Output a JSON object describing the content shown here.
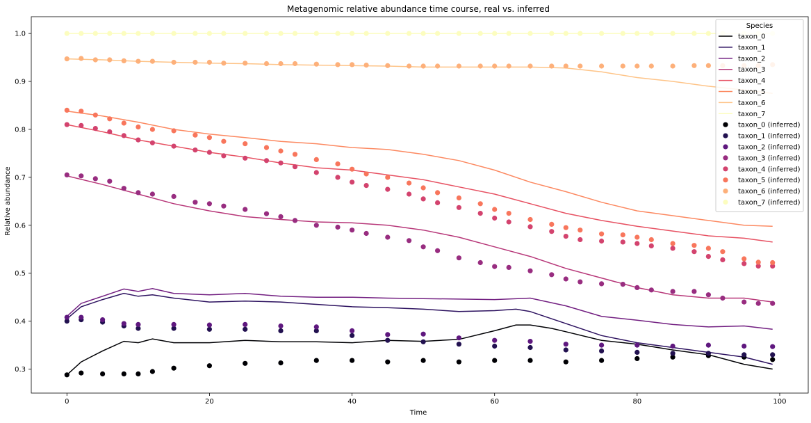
{
  "chart_data": {
    "type": "line",
    "title": "Metagenomic relative abundance time course, real vs. inferred",
    "xlabel": "Time",
    "ylabel": "Relative abundance",
    "xlim": [
      -5,
      104
    ],
    "ylim": [
      0.25,
      1.035
    ],
    "xticks": [
      0,
      20,
      40,
      60,
      80,
      100
    ],
    "yticks": [
      0.3,
      0.4,
      0.5,
      0.6,
      0.7,
      0.8,
      0.9,
      1.0
    ],
    "grid": false,
    "legend": {
      "title": "Species",
      "placement": "top-right",
      "entries": [
        "taxon_0",
        "taxon_1",
        "taxon_2",
        "taxon_3",
        "taxon_4",
        "taxon_5",
        "taxon_6",
        "taxon_7",
        "taxon_0 (inferred)",
        "taxon_1 (inferred)",
        "taxon_2 (inferred)",
        "taxon_3 (inferred)",
        "taxon_4 (inferred)",
        "taxon_5 (inferred)",
        "taxon_6 (inferred)",
        "taxon_7 (inferred)"
      ]
    },
    "series": [
      {
        "name": "taxon_0",
        "kind": "line",
        "color": "#000004",
        "x": [
          0,
          2,
          5,
          8,
          10,
          12,
          15,
          20,
          25,
          30,
          35,
          40,
          45,
          50,
          55,
          60,
          63,
          65,
          68,
          70,
          75,
          80,
          85,
          90,
          95,
          99
        ],
        "y": [
          0.288,
          0.315,
          0.338,
          0.358,
          0.355,
          0.363,
          0.355,
          0.355,
          0.36,
          0.357,
          0.357,
          0.355,
          0.36,
          0.358,
          0.362,
          0.38,
          0.392,
          0.392,
          0.385,
          0.378,
          0.36,
          0.352,
          0.34,
          0.33,
          0.31,
          0.3
        ]
      },
      {
        "name": "taxon_1",
        "kind": "line",
        "color": "#2c115f",
        "x": [
          0,
          2,
          5,
          8,
          10,
          12,
          15,
          20,
          25,
          30,
          35,
          40,
          45,
          50,
          55,
          60,
          63,
          65,
          70,
          75,
          80,
          85,
          90,
          95,
          99
        ],
        "y": [
          0.405,
          0.43,
          0.445,
          0.458,
          0.452,
          0.455,
          0.448,
          0.44,
          0.442,
          0.44,
          0.435,
          0.43,
          0.428,
          0.425,
          0.42,
          0.422,
          0.425,
          0.42,
          0.395,
          0.37,
          0.355,
          0.345,
          0.335,
          0.325,
          0.31
        ]
      },
      {
        "name": "taxon_2",
        "kind": "line",
        "color": "#721f81",
        "x": [
          0,
          2,
          5,
          8,
          10,
          12,
          15,
          20,
          25,
          30,
          35,
          40,
          45,
          50,
          55,
          60,
          65,
          70,
          75,
          80,
          85,
          90,
          95,
          99
        ],
        "y": [
          0.41,
          0.437,
          0.452,
          0.467,
          0.462,
          0.468,
          0.458,
          0.455,
          0.458,
          0.452,
          0.45,
          0.45,
          0.448,
          0.447,
          0.446,
          0.445,
          0.448,
          0.432,
          0.41,
          0.402,
          0.393,
          0.388,
          0.39,
          0.383
        ]
      },
      {
        "name": "taxon_3",
        "kind": "line",
        "color": "#b73779",
        "x": [
          0,
          5,
          10,
          15,
          20,
          25,
          30,
          35,
          40,
          45,
          50,
          55,
          60,
          65,
          70,
          75,
          80,
          85,
          90,
          95,
          99
        ],
        "y": [
          0.703,
          0.685,
          0.665,
          0.645,
          0.63,
          0.618,
          0.612,
          0.607,
          0.605,
          0.6,
          0.59,
          0.575,
          0.555,
          0.535,
          0.51,
          0.49,
          0.47,
          0.455,
          0.448,
          0.448,
          0.44
        ]
      },
      {
        "name": "taxon_4",
        "kind": "line",
        "color": "#e75263",
        "x": [
          0,
          5,
          10,
          15,
          20,
          25,
          30,
          35,
          40,
          45,
          50,
          55,
          60,
          65,
          70,
          75,
          80,
          85,
          90,
          95,
          99
        ],
        "y": [
          0.81,
          0.795,
          0.778,
          0.765,
          0.752,
          0.742,
          0.73,
          0.72,
          0.715,
          0.705,
          0.695,
          0.68,
          0.665,
          0.645,
          0.625,
          0.61,
          0.598,
          0.588,
          0.578,
          0.573,
          0.565
        ]
      },
      {
        "name": "taxon_5",
        "kind": "line",
        "color": "#fc8961",
        "x": [
          0,
          5,
          10,
          15,
          20,
          25,
          30,
          35,
          40,
          45,
          50,
          55,
          60,
          65,
          70,
          75,
          80,
          85,
          90,
          95,
          99
        ],
        "y": [
          0.838,
          0.828,
          0.815,
          0.8,
          0.79,
          0.783,
          0.775,
          0.77,
          0.762,
          0.758,
          0.748,
          0.735,
          0.715,
          0.69,
          0.67,
          0.648,
          0.63,
          0.62,
          0.61,
          0.6,
          0.598
        ]
      },
      {
        "name": "taxon_6",
        "kind": "line",
        "color": "#fec488",
        "x": [
          0,
          5,
          10,
          15,
          20,
          25,
          30,
          35,
          40,
          45,
          50,
          55,
          60,
          65,
          70,
          75,
          80,
          85,
          90,
          95,
          99
        ],
        "y": [
          0.947,
          0.945,
          0.942,
          0.94,
          0.938,
          0.937,
          0.935,
          0.934,
          0.933,
          0.932,
          0.93,
          0.93,
          0.93,
          0.93,
          0.928,
          0.92,
          0.908,
          0.9,
          0.89,
          0.882,
          0.875
        ]
      },
      {
        "name": "taxon_7",
        "kind": "line",
        "color": "#fcfdbf",
        "x": [
          0,
          99
        ],
        "y": [
          1.0,
          1.0
        ]
      },
      {
        "name": "taxon_0 (inferred)",
        "kind": "scatter",
        "color": "#000004",
        "x": [
          0,
          2,
          5,
          8,
          10,
          12,
          15,
          20,
          25,
          30,
          35,
          40,
          45,
          50,
          55,
          60,
          65,
          70,
          75,
          80,
          85,
          90,
          95,
          99
        ],
        "y": [
          0.288,
          0.292,
          0.29,
          0.29,
          0.29,
          0.295,
          0.302,
          0.307,
          0.312,
          0.313,
          0.318,
          0.318,
          0.315,
          0.318,
          0.315,
          0.318,
          0.318,
          0.315,
          0.318,
          0.322,
          0.325,
          0.328,
          0.325,
          0.32
        ]
      },
      {
        "name": "taxon_1 (inferred)",
        "kind": "scatter",
        "color": "#221150",
        "x": [
          0,
          2,
          5,
          8,
          10,
          15,
          20,
          25,
          30,
          35,
          40,
          45,
          50,
          55,
          60,
          65,
          70,
          75,
          80,
          85,
          90,
          95,
          99
        ],
        "y": [
          0.4,
          0.403,
          0.398,
          0.39,
          0.385,
          0.385,
          0.383,
          0.383,
          0.38,
          0.38,
          0.37,
          0.36,
          0.357,
          0.352,
          0.348,
          0.345,
          0.34,
          0.338,
          0.335,
          0.333,
          0.333,
          0.33,
          0.33
        ]
      },
      {
        "name": "taxon_2 (inferred)",
        "kind": "scatter",
        "color": "#5f187f",
        "x": [
          0,
          2,
          5,
          8,
          10,
          15,
          20,
          25,
          30,
          35,
          40,
          45,
          50,
          55,
          60,
          65,
          70,
          75,
          80,
          85,
          90,
          95,
          99
        ],
        "y": [
          0.408,
          0.408,
          0.403,
          0.395,
          0.393,
          0.393,
          0.392,
          0.393,
          0.39,
          0.388,
          0.38,
          0.372,
          0.373,
          0.365,
          0.36,
          0.358,
          0.352,
          0.35,
          0.35,
          0.348,
          0.35,
          0.348,
          0.347
        ]
      },
      {
        "name": "taxon_3 (inferred)",
        "kind": "scatter",
        "color": "#982d80",
        "x": [
          0,
          2,
          4,
          6,
          8,
          10,
          12,
          15,
          18,
          20,
          22,
          25,
          28,
          30,
          32,
          35,
          38,
          40,
          42,
          45,
          48,
          50,
          52,
          55,
          58,
          60,
          62,
          65,
          68,
          70,
          72,
          75,
          78,
          80,
          82,
          85,
          88,
          90,
          92,
          95,
          97,
          99
        ],
        "y": [
          0.705,
          0.703,
          0.697,
          0.692,
          0.677,
          0.668,
          0.665,
          0.66,
          0.648,
          0.645,
          0.64,
          0.633,
          0.624,
          0.618,
          0.61,
          0.6,
          0.596,
          0.59,
          0.583,
          0.575,
          0.568,
          0.555,
          0.547,
          0.532,
          0.522,
          0.514,
          0.512,
          0.505,
          0.497,
          0.488,
          0.482,
          0.478,
          0.477,
          0.47,
          0.465,
          0.462,
          0.462,
          0.455,
          0.448,
          0.44,
          0.437,
          0.437
        ]
      },
      {
        "name": "taxon_4 (inferred)",
        "kind": "scatter",
        "color": "#d3436e",
        "x": [
          0,
          2,
          4,
          6,
          8,
          10,
          12,
          15,
          18,
          20,
          22,
          25,
          28,
          30,
          32,
          35,
          38,
          40,
          42,
          45,
          48,
          50,
          52,
          55,
          58,
          60,
          62,
          65,
          68,
          70,
          72,
          75,
          78,
          80,
          82,
          85,
          88,
          90,
          92,
          95,
          97,
          99
        ],
        "y": [
          0.81,
          0.808,
          0.802,
          0.795,
          0.787,
          0.778,
          0.772,
          0.765,
          0.757,
          0.752,
          0.745,
          0.74,
          0.735,
          0.73,
          0.722,
          0.71,
          0.7,
          0.69,
          0.683,
          0.675,
          0.665,
          0.655,
          0.647,
          0.637,
          0.625,
          0.615,
          0.607,
          0.597,
          0.587,
          0.577,
          0.57,
          0.567,
          0.565,
          0.562,
          0.557,
          0.552,
          0.545,
          0.535,
          0.528,
          0.52,
          0.515,
          0.515
        ]
      },
      {
        "name": "taxon_5 (inferred)",
        "kind": "scatter",
        "color": "#f8765c",
        "x": [
          0,
          2,
          4,
          6,
          8,
          10,
          12,
          15,
          18,
          20,
          22,
          25,
          28,
          30,
          32,
          35,
          38,
          40,
          42,
          45,
          48,
          50,
          52,
          55,
          58,
          60,
          62,
          65,
          68,
          70,
          72,
          75,
          78,
          80,
          82,
          85,
          88,
          90,
          92,
          95,
          97,
          99
        ],
        "y": [
          0.84,
          0.838,
          0.83,
          0.822,
          0.813,
          0.805,
          0.8,
          0.797,
          0.788,
          0.783,
          0.775,
          0.77,
          0.762,
          0.755,
          0.748,
          0.737,
          0.728,
          0.717,
          0.707,
          0.7,
          0.688,
          0.678,
          0.668,
          0.657,
          0.645,
          0.633,
          0.625,
          0.612,
          0.602,
          0.595,
          0.59,
          0.582,
          0.58,
          0.575,
          0.57,
          0.562,
          0.558,
          0.552,
          0.545,
          0.53,
          0.523,
          0.522
        ]
      },
      {
        "name": "taxon_6 (inferred)",
        "kind": "scatter",
        "color": "#fdb07a",
        "x": [
          0,
          2,
          4,
          6,
          8,
          10,
          12,
          15,
          18,
          20,
          22,
          25,
          28,
          30,
          32,
          35,
          38,
          40,
          42,
          45,
          48,
          50,
          52,
          55,
          58,
          60,
          62,
          65,
          68,
          70,
          72,
          75,
          78,
          80,
          82,
          85,
          88,
          90,
          92,
          95,
          97,
          99
        ],
        "y": [
          0.947,
          0.948,
          0.945,
          0.945,
          0.943,
          0.942,
          0.942,
          0.94,
          0.94,
          0.94,
          0.938,
          0.938,
          0.937,
          0.937,
          0.937,
          0.936,
          0.935,
          0.935,
          0.934,
          0.933,
          0.932,
          0.932,
          0.932,
          0.932,
          0.932,
          0.932,
          0.932,
          0.932,
          0.932,
          0.932,
          0.932,
          0.932,
          0.932,
          0.932,
          0.932,
          0.932,
          0.933,
          0.933,
          0.933,
          0.933,
          0.933,
          0.935
        ]
      },
      {
        "name": "taxon_7 (inferred)",
        "kind": "scatter",
        "color": "#fcfdbf",
        "x": [
          0,
          2,
          4,
          6,
          8,
          10,
          12,
          15,
          18,
          20,
          22,
          25,
          28,
          30,
          32,
          35,
          38,
          40,
          42,
          45,
          48,
          50,
          52,
          55,
          58,
          60,
          62,
          65,
          68,
          70,
          72,
          75,
          78,
          80,
          82,
          85,
          88,
          90,
          92,
          95,
          97,
          99
        ],
        "y": [
          1.0,
          1.0,
          1.0,
          1.0,
          1.0,
          1.0,
          1.0,
          1.0,
          1.0,
          1.0,
          1.0,
          1.0,
          1.0,
          1.0,
          1.0,
          1.0,
          1.0,
          1.0,
          1.0,
          1.0,
          1.0,
          1.0,
          1.0,
          1.0,
          1.0,
          1.0,
          1.0,
          1.0,
          1.0,
          1.0,
          1.0,
          1.0,
          1.0,
          1.0,
          1.0,
          1.0,
          1.0,
          1.0,
          1.0,
          1.0,
          1.0,
          1.0
        ]
      }
    ]
  }
}
